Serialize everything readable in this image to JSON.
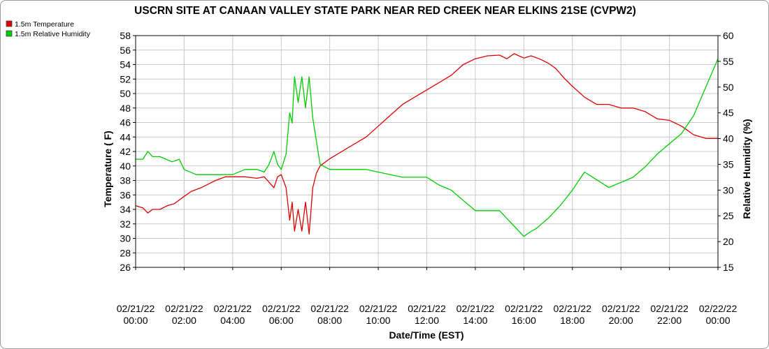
{
  "chart_data": {
    "type": "line",
    "title": "USCRN SITE AT CANAAN VALLEY STATE PARK NEAR RED CREEK NEAR ELKINS 21SE (CVPW2)",
    "xlabel": "Date/Time (EST)",
    "ylabel_left": "Temperature ( F)",
    "ylabel_right": "Relative Humidity (%)",
    "x_ticks": [
      {
        "date": "02/21/22",
        "time": "00:00"
      },
      {
        "date": "02/21/22",
        "time": "02:00"
      },
      {
        "date": "02/21/22",
        "time": "04:00"
      },
      {
        "date": "02/21/22",
        "time": "06:00"
      },
      {
        "date": "02/21/22",
        "time": "08:00"
      },
      {
        "date": "02/21/22",
        "time": "10:00"
      },
      {
        "date": "02/21/22",
        "time": "12:00"
      },
      {
        "date": "02/21/22",
        "time": "14:00"
      },
      {
        "date": "02/21/22",
        "time": "16:00"
      },
      {
        "date": "02/21/22",
        "time": "18:00"
      },
      {
        "date": "02/21/22",
        "time": "20:00"
      },
      {
        "date": "02/21/22",
        "time": "22:00"
      },
      {
        "date": "02/22/22",
        "time": "00:00"
      }
    ],
    "x_unit": "hours",
    "xlim": [
      0,
      24
    ],
    "ylim_left": [
      26,
      58
    ],
    "yticks_left": [
      26,
      28,
      30,
      32,
      34,
      36,
      38,
      40,
      42,
      44,
      46,
      48,
      50,
      52,
      54,
      56,
      58
    ],
    "ylim_right": [
      15,
      60
    ],
    "yticks_right": [
      15,
      20,
      25,
      30,
      35,
      40,
      45,
      50,
      55,
      60
    ],
    "grid": true,
    "legend_position": "top-left",
    "series": [
      {
        "name": "1.5m Temperature",
        "color": "#dd0000",
        "axis": "left",
        "x": [
          0,
          0.3,
          0.5,
          0.7,
          1.0,
          1.3,
          1.6,
          2.0,
          2.3,
          2.7,
          3.0,
          3.3,
          3.7,
          4.0,
          4.5,
          5.0,
          5.3,
          5.7,
          5.85,
          6.0,
          6.2,
          6.35,
          6.45,
          6.55,
          6.7,
          6.85,
          7.0,
          7.15,
          7.3,
          7.45,
          7.6,
          8.0,
          8.5,
          9.0,
          9.5,
          10.0,
          10.5,
          11.0,
          11.5,
          12.0,
          12.5,
          13.0,
          13.5,
          14.0,
          14.5,
          15.0,
          15.3,
          15.6,
          16.0,
          16.3,
          16.7,
          17.0,
          17.3,
          17.7,
          18.0,
          18.5,
          19.0,
          19.5,
          20.0,
          20.5,
          21.0,
          21.5,
          22.0,
          22.5,
          23.0,
          23.5,
          24.0
        ],
        "values": [
          34.5,
          34.2,
          33.5,
          34.0,
          34.0,
          34.5,
          34.8,
          35.8,
          36.5,
          37.0,
          37.5,
          38.0,
          38.5,
          38.5,
          38.5,
          38.3,
          38.5,
          37.0,
          38.5,
          38.8,
          37.0,
          32.5,
          35.0,
          31.0,
          34.0,
          31.0,
          35.0,
          30.6,
          37.0,
          39.0,
          40.0,
          41.0,
          42.0,
          43.0,
          44.0,
          45.5,
          47.0,
          48.5,
          49.5,
          50.5,
          51.5,
          52.5,
          54.0,
          54.8,
          55.2,
          55.3,
          54.8,
          55.5,
          54.9,
          55.2,
          54.7,
          54.2,
          53.5,
          52.0,
          51.0,
          49.5,
          48.5,
          48.5,
          48.0,
          48.0,
          47.5,
          46.5,
          46.3,
          45.5,
          44.3,
          43.8,
          43.8
        ]
      },
      {
        "name": "1.5m Relative Humidity",
        "color": "#00cc00",
        "axis": "right",
        "x": [
          0,
          0.3,
          0.5,
          0.7,
          1.0,
          1.5,
          1.8,
          2.0,
          2.5,
          3.0,
          3.5,
          4.0,
          4.5,
          5.0,
          5.3,
          5.5,
          5.7,
          5.85,
          6.0,
          6.2,
          6.35,
          6.45,
          6.55,
          6.7,
          6.85,
          7.0,
          7.15,
          7.3,
          7.6,
          8.0,
          8.5,
          9.0,
          9.5,
          10.0,
          10.5,
          11.0,
          11.5,
          12.0,
          12.5,
          13.0,
          13.5,
          14.0,
          14.5,
          15.0,
          15.3,
          15.6,
          16.0,
          16.3,
          16.5,
          17.0,
          17.5,
          18.0,
          18.5,
          19.0,
          19.5,
          20.0,
          20.5,
          21.0,
          21.5,
          22.0,
          22.5,
          23.0,
          23.5,
          24.0
        ],
        "values": [
          36.0,
          36.0,
          37.5,
          36.5,
          36.5,
          35.5,
          36.0,
          34.0,
          33.0,
          33.0,
          33.0,
          33.0,
          34.0,
          34.0,
          33.5,
          35.0,
          37.5,
          35.0,
          34.0,
          37.0,
          45.0,
          43.0,
          52.0,
          47.0,
          52.0,
          46.0,
          52.0,
          44.0,
          35.0,
          34.0,
          34.0,
          34.0,
          34.0,
          33.5,
          33.0,
          32.5,
          32.5,
          32.5,
          31.0,
          30.0,
          28.0,
          26.0,
          26.0,
          26.0,
          24.5,
          23.0,
          21.0,
          22.0,
          22.5,
          24.5,
          27.0,
          30.0,
          33.5,
          32.0,
          30.5,
          31.5,
          32.5,
          34.5,
          37.0,
          39.0,
          41.0,
          44.5,
          50.0,
          55.5
        ]
      }
    ]
  }
}
